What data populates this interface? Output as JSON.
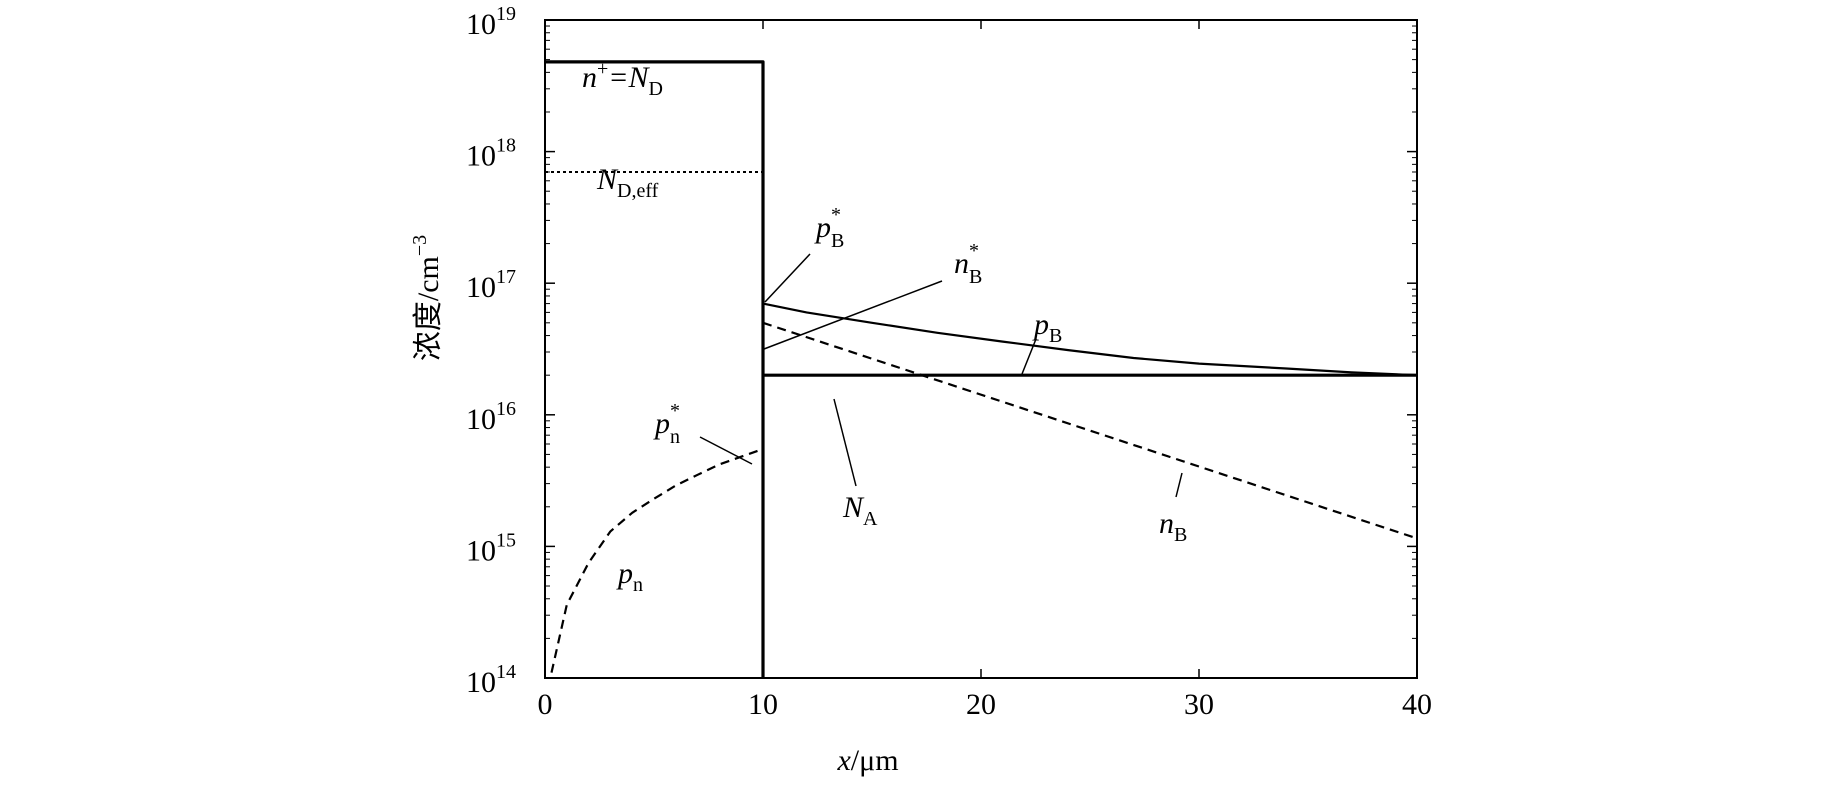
{
  "chart_data": {
    "type": "line",
    "x_axis": {
      "label_var": "x",
      "label_unit": "/μm",
      "range": [
        0,
        40
      ],
      "ticks": [
        "0",
        "10",
        "20",
        "30",
        "40"
      ]
    },
    "y_axis": {
      "label_base": "浓度/cm",
      "label_exp": "−3",
      "scale": "log",
      "range": [
        100000000000000.0,
        1e+19
      ],
      "ticks": [
        {
          "base": "10",
          "exp": "14"
        },
        {
          "base": "10",
          "exp": "15"
        },
        {
          "base": "10",
          "exp": "16"
        },
        {
          "base": "10",
          "exp": "17"
        },
        {
          "base": "10",
          "exp": "18"
        },
        {
          "base": "10",
          "exp": "19"
        }
      ]
    },
    "grid": false,
    "series": [
      {
        "key": "n_plus",
        "style": "solid-thick",
        "x": [
          0,
          10,
          10
        ],
        "y": [
          4.8e+18,
          4.8e+18,
          100000000000000.0
        ]
      },
      {
        "key": "nd_eff",
        "style": "dotted",
        "x": [
          0,
          10
        ],
        "y": [
          7e+17,
          7e+17
        ]
      },
      {
        "key": "p_n",
        "style": "dashed",
        "x": [
          0.3,
          1,
          2,
          3,
          4,
          5,
          6,
          7,
          8,
          9,
          10
        ],
        "y": [
          110000000000000.0,
          360000000000000.0,
          750000000000000.0,
          1300000000000000.0,
          1800000000000000.0,
          2300000000000000.0,
          2900000000000000.0,
          3500000000000000.0,
          4200000000000000.0,
          4800000000000000.0,
          5500000000000000.0
        ]
      },
      {
        "key": "p_B",
        "style": "solid",
        "x": [
          10,
          12,
          15,
          18,
          21,
          24,
          27,
          30,
          34,
          37,
          40
        ],
        "y": [
          7e+16,
          6e+16,
          5e+16,
          4.2e+16,
          3.6e+16,
          3.1e+16,
          2.7e+16,
          2.45e+16,
          2.25e+16,
          2.1e+16,
          2e+16
        ]
      },
      {
        "key": "N_A",
        "style": "solid-thick",
        "x": [
          10,
          40
        ],
        "y": [
          2e+16,
          2e+16
        ]
      },
      {
        "key": "n_B",
        "style": "dashed",
        "x": [
          10,
          40
        ],
        "y": [
          5e+16,
          1150000000000000.0
        ]
      }
    ],
    "annotations": [
      {
        "key": "n_plus",
        "main": "n",
        "sup": "+",
        "tail": "=N",
        "sub": "D"
      },
      {
        "key": "nd_eff",
        "main": "N",
        "sub": "D,eff"
      },
      {
        "key": "pB_star",
        "main": "p",
        "sup": "*",
        "sub": "B"
      },
      {
        "key": "nB_star",
        "main": "n",
        "sup": "*",
        "sub": "B"
      },
      {
        "key": "pB",
        "main": "p",
        "sub": "B"
      },
      {
        "key": "pn_star",
        "main": "p",
        "sup": "*",
        "sub": "n"
      },
      {
        "key": "NA",
        "main": "N",
        "sub": "A"
      },
      {
        "key": "nB",
        "main": "n",
        "sub": "B"
      },
      {
        "key": "pn",
        "main": "p",
        "sub": "n"
      }
    ]
  }
}
